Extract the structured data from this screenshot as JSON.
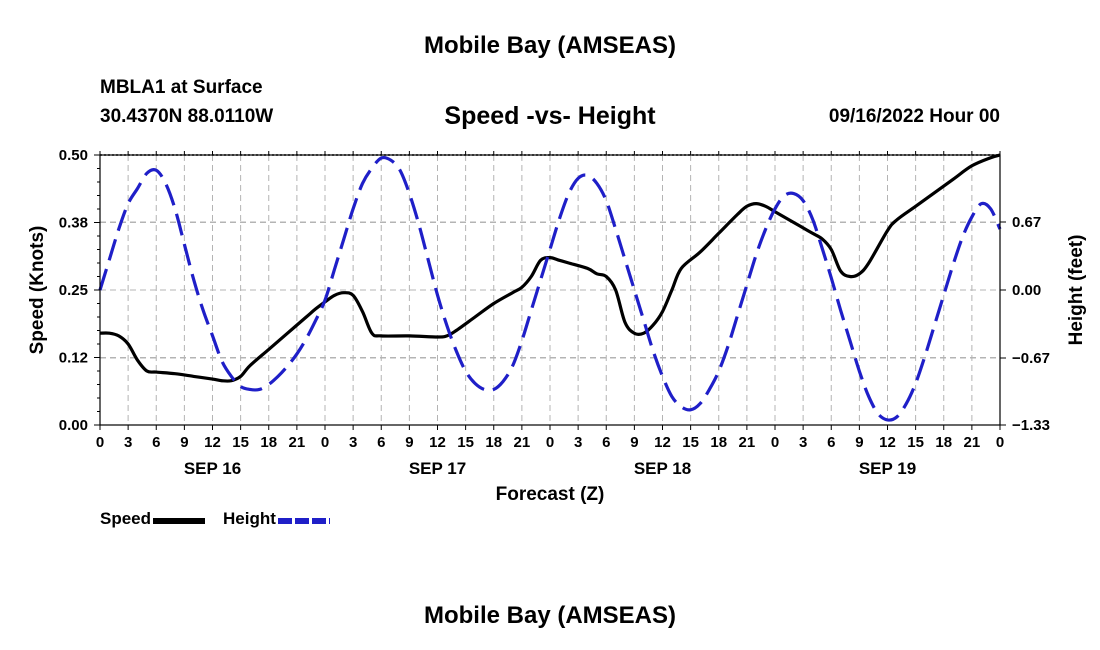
{
  "titles": {
    "top": "Mobile Bay (AMSEAS)",
    "bottom": "Mobile Bay (AMSEAS)"
  },
  "station": {
    "name": "MBLA1 at Surface",
    "coords": "30.4370N  88.0110W"
  },
  "run_time": "09/16/2022 Hour 00",
  "legend": {
    "speed_label": "Speed",
    "height_label": "Height"
  },
  "chart_data": {
    "type": "line",
    "title": "Speed -vs- Height",
    "xlabel": "Forecast (Z)",
    "ylabel": "Speed (Knots)",
    "y2label": "Height (feet)",
    "x_range_hours": [
      0,
      96
    ],
    "x_ticks_hours": [
      0,
      3,
      6,
      9,
      12,
      15,
      18,
      21,
      24,
      27,
      30,
      33,
      36,
      39,
      42,
      45,
      48,
      51,
      54,
      57,
      60,
      63,
      66,
      69,
      72,
      75,
      78,
      81,
      84,
      87,
      90,
      93,
      96
    ],
    "x_tick_labels": [
      "0",
      "3",
      "6",
      "9",
      "12",
      "15",
      "18",
      "21",
      "0",
      "3",
      "6",
      "9",
      "12",
      "15",
      "18",
      "21",
      "0",
      "3",
      "6",
      "9",
      "12",
      "15",
      "18",
      "21",
      "0",
      "3",
      "6",
      "9",
      "12",
      "15",
      "18",
      "21",
      "0"
    ],
    "day_labels": [
      {
        "label": "SEP 16",
        "hour": 12
      },
      {
        "label": "SEP 17",
        "hour": 36
      },
      {
        "label": "SEP 18",
        "hour": 60
      },
      {
        "label": "SEP 19",
        "hour": 84
      }
    ],
    "ylim": [
      0,
      0.5
    ],
    "y_ticks": [
      0,
      0.125,
      0.25,
      0.375,
      0.5
    ],
    "y_tick_labels": [
      "0.00",
      "0.12",
      "0.25",
      "0.38",
      "0.50"
    ],
    "y2lim": [
      -1.33,
      1.33
    ],
    "y2_ticks": [
      -1.33,
      -0.67,
      0.0,
      0.67
    ],
    "y2_tick_labels": [
      "−1.33",
      "−0.67",
      "0.00",
      "0.67"
    ],
    "grid": true,
    "series": [
      {
        "name": "Speed",
        "axis": "left",
        "color": "#000000",
        "dash": "solid",
        "points": [
          [
            0,
            0.17
          ],
          [
            1,
            0.17
          ],
          [
            2,
            0.165
          ],
          [
            3,
            0.15
          ],
          [
            4,
            0.12
          ],
          [
            5,
            0.1
          ],
          [
            6,
            0.098
          ],
          [
            8,
            0.095
          ],
          [
            10,
            0.09
          ],
          [
            12,
            0.085
          ],
          [
            13,
            0.082
          ],
          [
            14,
            0.082
          ],
          [
            15,
            0.09
          ],
          [
            16,
            0.11
          ],
          [
            18,
            0.14
          ],
          [
            20,
            0.17
          ],
          [
            22,
            0.2
          ],
          [
            23,
            0.215
          ],
          [
            24,
            0.228
          ],
          [
            25,
            0.24
          ],
          [
            26,
            0.245
          ],
          [
            27,
            0.24
          ],
          [
            28,
            0.21
          ],
          [
            29,
            0.17
          ],
          [
            30,
            0.165
          ],
          [
            33,
            0.165
          ],
          [
            36,
            0.163
          ],
          [
            37,
            0.165
          ],
          [
            38,
            0.175
          ],
          [
            40,
            0.2
          ],
          [
            42,
            0.225
          ],
          [
            44,
            0.245
          ],
          [
            45,
            0.255
          ],
          [
            46,
            0.275
          ],
          [
            47,
            0.305
          ],
          [
            48,
            0.31
          ],
          [
            49,
            0.305
          ],
          [
            50,
            0.3
          ],
          [
            52,
            0.29
          ],
          [
            53,
            0.28
          ],
          [
            54,
            0.275
          ],
          [
            55,
            0.25
          ],
          [
            56,
            0.19
          ],
          [
            57,
            0.17
          ],
          [
            58,
            0.17
          ],
          [
            59,
            0.185
          ],
          [
            60,
            0.21
          ],
          [
            61,
            0.25
          ],
          [
            62,
            0.29
          ],
          [
            64,
            0.32
          ],
          [
            66,
            0.355
          ],
          [
            68,
            0.39
          ],
          [
            69,
            0.405
          ],
          [
            70,
            0.41
          ],
          [
            71,
            0.405
          ],
          [
            72,
            0.395
          ],
          [
            74,
            0.375
          ],
          [
            75,
            0.365
          ],
          [
            76,
            0.355
          ],
          [
            77,
            0.345
          ],
          [
            78,
            0.325
          ],
          [
            79,
            0.285
          ],
          [
            80,
            0.275
          ],
          [
            81,
            0.28
          ],
          [
            82,
            0.3
          ],
          [
            84,
            0.36
          ],
          [
            85,
            0.38
          ],
          [
            87,
            0.405
          ],
          [
            89,
            0.43
          ],
          [
            91,
            0.455
          ],
          [
            93,
            0.48
          ],
          [
            95,
            0.495
          ],
          [
            96,
            0.5
          ]
        ]
      },
      {
        "name": "Height",
        "axis": "right",
        "color": "#1f1fc8",
        "dash": "dashed",
        "points": [
          [
            0,
            0.0
          ],
          [
            1,
            0.3
          ],
          [
            2,
            0.6
          ],
          [
            3,
            0.85
          ],
          [
            4,
            1.0
          ],
          [
            5,
            1.15
          ],
          [
            6,
            1.18
          ],
          [
            7,
            1.05
          ],
          [
            8,
            0.8
          ],
          [
            9,
            0.45
          ],
          [
            10,
            0.1
          ],
          [
            11,
            -0.2
          ],
          [
            12,
            -0.45
          ],
          [
            13,
            -0.7
          ],
          [
            14,
            -0.85
          ],
          [
            15,
            -0.95
          ],
          [
            16,
            -0.98
          ],
          [
            17,
            -0.98
          ],
          [
            18,
            -0.93
          ],
          [
            19,
            -0.85
          ],
          [
            20,
            -0.75
          ],
          [
            21,
            -0.63
          ],
          [
            22,
            -0.48
          ],
          [
            23,
            -0.3
          ],
          [
            24,
            -0.1
          ],
          [
            25,
            0.2
          ],
          [
            26,
            0.5
          ],
          [
            27,
            0.8
          ],
          [
            28,
            1.05
          ],
          [
            29,
            1.2
          ],
          [
            30,
            1.3
          ],
          [
            31,
            1.28
          ],
          [
            32,
            1.18
          ],
          [
            33,
            0.95
          ],
          [
            34,
            0.65
          ],
          [
            35,
            0.3
          ],
          [
            36,
            -0.05
          ],
          [
            37,
            -0.35
          ],
          [
            38,
            -0.6
          ],
          [
            39,
            -0.8
          ],
          [
            40,
            -0.92
          ],
          [
            41,
            -0.98
          ],
          [
            42,
            -0.98
          ],
          [
            43,
            -0.9
          ],
          [
            44,
            -0.75
          ],
          [
            45,
            -0.5
          ],
          [
            46,
            -0.2
          ],
          [
            47,
            0.1
          ],
          [
            48,
            0.4
          ],
          [
            49,
            0.7
          ],
          [
            50,
            0.95
          ],
          [
            51,
            1.1
          ],
          [
            52,
            1.13
          ],
          [
            53,
            1.05
          ],
          [
            54,
            0.88
          ],
          [
            55,
            0.6
          ],
          [
            56,
            0.3
          ],
          [
            57,
            0.0
          ],
          [
            58,
            -0.3
          ],
          [
            59,
            -0.6
          ],
          [
            60,
            -0.85
          ],
          [
            61,
            -1.05
          ],
          [
            62,
            -1.15
          ],
          [
            63,
            -1.18
          ],
          [
            64,
            -1.12
          ],
          [
            65,
            -0.98
          ],
          [
            66,
            -0.8
          ],
          [
            67,
            -0.55
          ],
          [
            68,
            -0.25
          ],
          [
            69,
            0.05
          ],
          [
            70,
            0.35
          ],
          [
            71,
            0.6
          ],
          [
            72,
            0.8
          ],
          [
            73,
            0.93
          ],
          [
            74,
            0.95
          ],
          [
            75,
            0.88
          ],
          [
            76,
            0.7
          ],
          [
            77,
            0.42
          ],
          [
            78,
            0.12
          ],
          [
            79,
            -0.2
          ],
          [
            80,
            -0.5
          ],
          [
            81,
            -0.8
          ],
          [
            82,
            -1.05
          ],
          [
            83,
            -1.22
          ],
          [
            84,
            -1.28
          ],
          [
            85,
            -1.25
          ],
          [
            86,
            -1.12
          ],
          [
            87,
            -0.92
          ],
          [
            88,
            -0.65
          ],
          [
            89,
            -0.35
          ],
          [
            90,
            -0.05
          ],
          [
            91,
            0.25
          ],
          [
            92,
            0.52
          ],
          [
            93,
            0.72
          ],
          [
            94,
            0.85
          ],
          [
            95,
            0.8
          ],
          [
            96,
            0.6
          ]
        ]
      }
    ]
  }
}
